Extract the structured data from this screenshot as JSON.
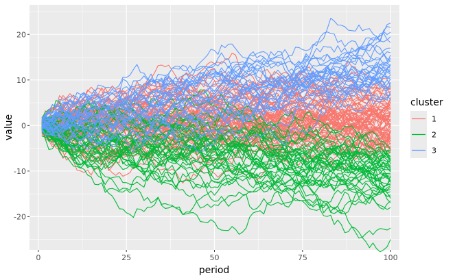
{
  "chart_data": {
    "type": "line",
    "title": "",
    "xlabel": "period",
    "ylabel": "value",
    "xlim": [
      -2.5,
      102.5
    ],
    "ylim": [
      -27.3,
      26.5
    ],
    "x_ticks": [
      0,
      25,
      50,
      75,
      100
    ],
    "x_tick_labels": [
      "0",
      "25",
      "50",
      "75",
      "100"
    ],
    "y_ticks": [
      -20,
      -10,
      0,
      10,
      20
    ],
    "y_tick_labels": [
      "-20",
      "-10",
      "0",
      "10",
      "20"
    ],
    "grid": true,
    "panel_background": "#EBEBEB",
    "legend": {
      "title": "cluster",
      "placement": "right",
      "entries": [
        {
          "label": "1",
          "color": "#F8766D"
        },
        {
          "label": "2",
          "color": "#00BA38"
        },
        {
          "label": "3",
          "color": "#619CFF"
        }
      ]
    },
    "x": {
      "start": 1,
      "end": 100
    },
    "series": [
      {
        "cluster": "1",
        "color": "#F8766D",
        "count": 70,
        "end_values": [
          8.5,
          8,
          7.5,
          6.5,
          5.5,
          5,
          4.5,
          3.5,
          3,
          2.5,
          2,
          1.5,
          1,
          0.5,
          0,
          -0.5,
          -1,
          -1.5,
          -2,
          -2.5,
          -3,
          -3.5,
          -4,
          -4.5,
          -5,
          -5.5,
          -6,
          7,
          6,
          4,
          2.8,
          1.2,
          -0.2,
          -1.2,
          -2.2,
          -3.2,
          5.2,
          3.8,
          1.8,
          0.2,
          -1.8,
          -2.8,
          -4.2,
          6.8,
          4.8,
          2.2,
          -0.8,
          -3.8,
          -5.2,
          8.2,
          3.2,
          0.8,
          -2.4,
          -4.8,
          5.8,
          1.4,
          -1.4,
          -3.4,
          7.8,
          2.6,
          -0.6,
          -2.6,
          4.2,
          0.4,
          -4.4,
          6.2,
          2.4,
          -1.6,
          -5.8,
          3.6
        ]
      },
      {
        "cluster": "2",
        "color": "#00BA38",
        "count": 40,
        "end_values": [
          -25,
          -22.5,
          -18,
          -17,
          -16.5,
          -16,
          -15.5,
          -14,
          -13.5,
          -13,
          -12.5,
          -12,
          -11.5,
          -11,
          -10.5,
          -10,
          -9.5,
          -9,
          -8.5,
          -8,
          -7.5,
          -7,
          -6.5,
          -6,
          -5.5,
          -14.5,
          -12.2,
          -10.8,
          -9.2,
          -7.2,
          -11.8,
          -8.8,
          -6.8,
          -13.2,
          -10.2,
          -15.2,
          -7.8,
          -9.8,
          -12.8,
          -5.2
        ]
      },
      {
        "cluster": "3",
        "color": "#619CFF",
        "count": 30,
        "end_values": [
          22.5,
          21.5,
          20.5,
          19.5,
          17,
          15.5,
          14.5,
          14,
          13.5,
          13,
          12.5,
          12,
          11.5,
          11,
          10.5,
          10,
          9.5,
          9,
          8.5,
          7.5,
          16,
          14.8,
          13.2,
          12.2,
          11.2,
          10.2,
          8.8,
          18.2,
          6.8,
          5.5
        ]
      }
    ]
  }
}
